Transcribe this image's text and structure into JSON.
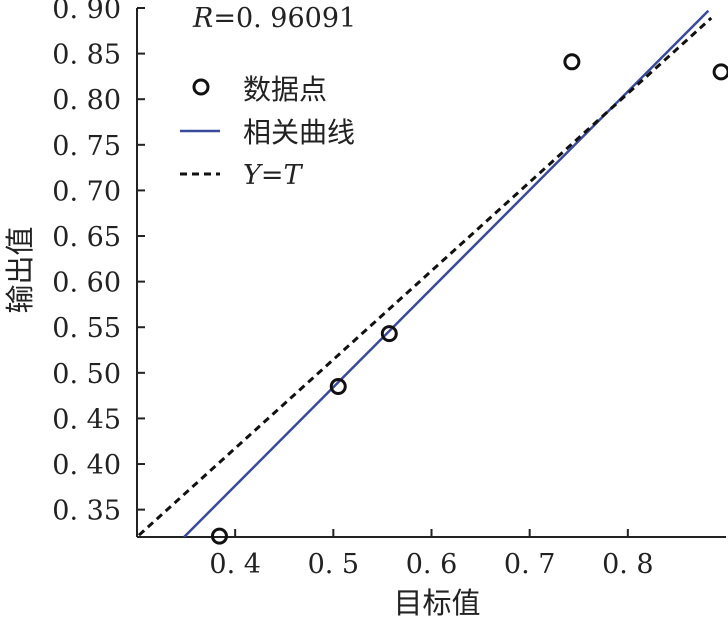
{
  "chart_data": {
    "type": "scatter",
    "xlabel": "目标值",
    "ylabel": "输出值",
    "xlim": [
      0.3,
      0.9
    ],
    "ylim": [
      0.32,
      0.9
    ],
    "x_ticks": [
      0.4,
      0.5,
      0.6,
      0.7,
      0.8
    ],
    "x_tick_labels": [
      "0. 4",
      "0. 5",
      "0. 6",
      "0. 7",
      "0. 8"
    ],
    "y_ticks": [
      0.35,
      0.4,
      0.45,
      0.5,
      0.55,
      0.6,
      0.65,
      0.7,
      0.75,
      0.8,
      0.85,
      0.9
    ],
    "y_tick_labels": [
      "0. 35",
      "0. 40",
      "0. 45",
      "0. 50",
      "0. 55",
      "0. 60",
      "0. 65",
      "0. 70",
      "0. 75",
      "0. 80",
      "0. 85",
      "0. 90"
    ],
    "annotation": {
      "var": "R",
      "value": "=0. 96091"
    },
    "grid": false,
    "legend_position": "top-left",
    "series": [
      {
        "name": "数据点",
        "type": "scatter",
        "marker": "open-circle",
        "color": "#111111",
        "x": [
          0.384,
          0.505,
          0.557,
          0.743,
          0.895
        ],
        "y": [
          0.321,
          0.485,
          0.543,
          0.841,
          0.83
        ]
      },
      {
        "name": "相关曲线",
        "type": "line",
        "style": "solid",
        "color": "#3a4a9a",
        "x": [
          0.348,
          0.882
        ],
        "y": [
          0.32,
          0.897
        ]
      },
      {
        "name": "Y=T",
        "name_parts": [
          "Y",
          "=",
          "T"
        ],
        "type": "line",
        "style": "dashed",
        "color": "#111111",
        "x": [
          0.302,
          0.885
        ],
        "y": [
          0.322,
          0.889
        ]
      }
    ]
  }
}
